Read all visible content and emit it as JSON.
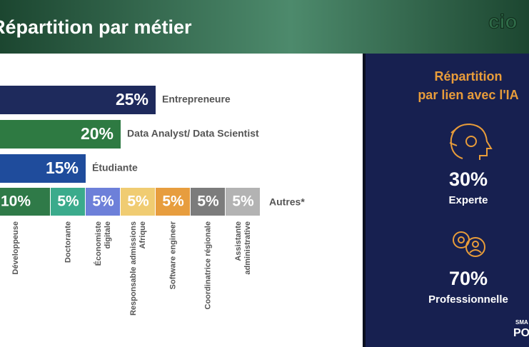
{
  "header": {
    "title": "Répartition par métier",
    "logo": "cio"
  },
  "chart_data": {
    "type": "bar",
    "categories": [
      "Entrepreneure",
      "Data Analyst/ Data Scientist",
      "Étudiante"
    ],
    "values": [
      25,
      20,
      15
    ],
    "value_labels": [
      "25%",
      "20%",
      "15%"
    ],
    "colors": [
      "#1e2a5c",
      "#2e7a42",
      "#1f4c9c"
    ],
    "stack": {
      "label": "Autres*",
      "segments": [
        {
          "name": [
            "Développeuse"
          ],
          "value": 10,
          "value_label": "10%",
          "color": "#2f7a48"
        },
        {
          "name": [
            "Doctorante"
          ],
          "value": 5,
          "value_label": "5%",
          "color": "#3bab8c"
        },
        {
          "name": [
            "Économiste",
            "digitale"
          ],
          "value": 5,
          "value_label": "5%",
          "color": "#6d80d9"
        },
        {
          "name": [
            "Responsable admissions",
            "Afrique"
          ],
          "value": 5,
          "value_label": "5%",
          "color": "#f0cc72"
        },
        {
          "name": [
            "Software engineer"
          ],
          "value": 5,
          "value_label": "5%",
          "color": "#e79d3e"
        },
        {
          "name": [
            "Coordinatrice régionale"
          ],
          "value": 5,
          "value_label": "5%",
          "color": "#7c7c7c"
        },
        {
          "name": [
            "Assistante",
            "administrative"
          ],
          "value": 5,
          "value_label": "5%",
          "color": "#b3b3b3"
        }
      ]
    }
  },
  "panel": {
    "title": [
      "Répartition",
      "par lien avec l'IA"
    ],
    "items": [
      {
        "value": "30%",
        "label": "Experte"
      },
      {
        "value": "70%",
        "label": "Professionnelle"
      }
    ],
    "corner": [
      "SMA",
      "PO"
    ]
  }
}
